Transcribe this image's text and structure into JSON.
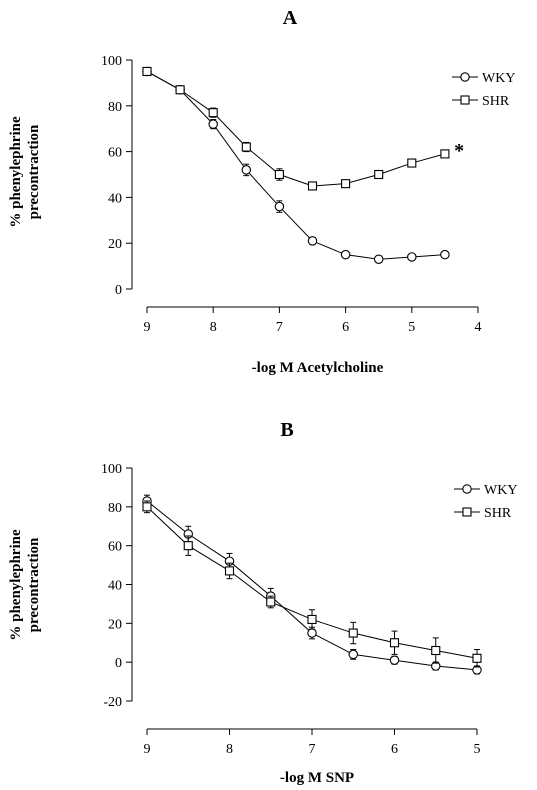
{
  "chart_data": [
    {
      "type": "line",
      "panel_label": "A",
      "xlabel": "-log M Acetylcholine",
      "ylabel": [
        "% phenylephrine",
        "precontraction"
      ],
      "xlim": [
        9,
        4
      ],
      "ylim": [
        0,
        100
      ],
      "x_reversed": true,
      "xticks": [
        9,
        8,
        7,
        6,
        5,
        4
      ],
      "yticks": [
        0,
        20,
        40,
        60,
        80,
        100
      ],
      "grid": false,
      "legend_position": "top-right",
      "series": [
        {
          "name": "WKY",
          "marker": "circle",
          "x": [
            9,
            8.5,
            8,
            7.5,
            7,
            6.5,
            6,
            5.5,
            5,
            4.5
          ],
          "y": [
            95,
            87,
            72,
            52,
            36,
            21,
            15,
            13,
            14,
            15
          ],
          "err": [
            1.5,
            1.5,
            2,
            2.5,
            2.5,
            1.5,
            1,
            1,
            1,
            1
          ]
        },
        {
          "name": "SHR",
          "marker": "square",
          "x": [
            9,
            8.5,
            8,
            7.5,
            7,
            6.5,
            6,
            5.5,
            5,
            4.5
          ],
          "y": [
            95,
            87,
            77,
            62,
            50,
            45,
            46,
            50,
            55,
            59
          ],
          "err": [
            1.5,
            1.5,
            2,
            2,
            2.5,
            1.5,
            1.5,
            1.5,
            1.5,
            1.5
          ]
        }
      ],
      "annotations": [
        {
          "text": "*",
          "x": 4.3,
          "y": 62
        }
      ]
    },
    {
      "type": "line",
      "panel_label": "B",
      "xlabel": "-log M SNP",
      "ylabel": [
        "% phenylephrine",
        "precontraction"
      ],
      "xlim": [
        9,
        5
      ],
      "ylim": [
        -20,
        100
      ],
      "x_reversed": true,
      "xticks": [
        9,
        8,
        7,
        6,
        5
      ],
      "yticks": [
        -20,
        0,
        20,
        40,
        60,
        80,
        100
      ],
      "grid": false,
      "legend_position": "top-right",
      "series": [
        {
          "name": "WKY",
          "marker": "circle",
          "x": [
            9,
            8.5,
            8,
            7.5,
            7,
            6.5,
            6,
            5.5,
            5
          ],
          "y": [
            83,
            66,
            52,
            34,
            15,
            4,
            1,
            -2,
            -4
          ],
          "err": [
            3,
            4,
            4,
            4,
            3,
            2.5,
            2,
            2,
            2
          ]
        },
        {
          "name": "SHR",
          "marker": "square",
          "x": [
            9,
            8.5,
            8,
            7.5,
            7,
            6.5,
            6,
            5.5,
            5
          ],
          "y": [
            80,
            60,
            47,
            31,
            22,
            15,
            10,
            6,
            2
          ],
          "err": [
            3,
            5,
            4,
            3,
            5,
            5.5,
            6,
            6.5,
            4.5
          ]
        }
      ],
      "annotations": []
    }
  ]
}
